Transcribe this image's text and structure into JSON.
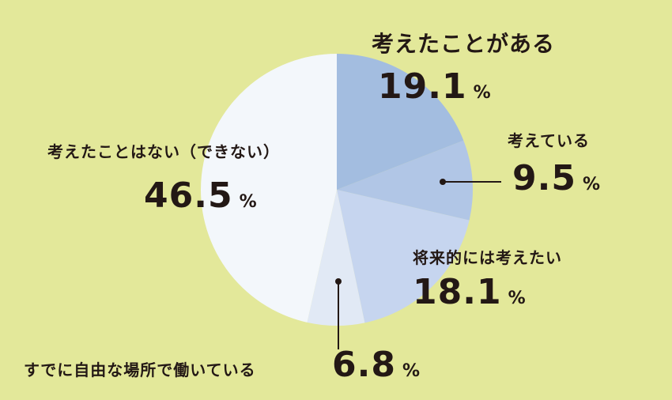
{
  "chart_data": {
    "type": "pie",
    "unit": "%",
    "slices": [
      {
        "label": "考えたことがある",
        "value": 19.1,
        "display": "19.1",
        "color": "#a3bde0"
      },
      {
        "label": "考えている",
        "value": 9.5,
        "display": "9.5",
        "color": "#b1c6e6"
      },
      {
        "label": "将来的には考えたい",
        "value": 18.1,
        "display": "18.1",
        "color": "#c6d5ef"
      },
      {
        "label": "すでに自由な場所で働いている",
        "value": 6.8,
        "display": "6.8",
        "color": "#e1e9f5"
      },
      {
        "label": "考えたことはない（できない）",
        "value": 46.5,
        "display": "46.5",
        "color": "#f3f7fb"
      }
    ]
  }
}
